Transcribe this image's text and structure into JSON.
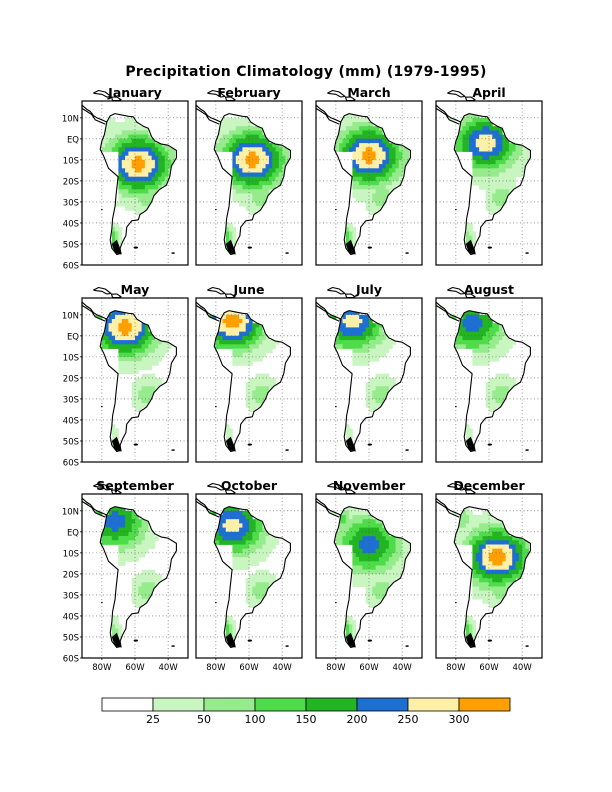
{
  "title": "Precipitation Climatology (mm) (1979-1995)",
  "colors": {
    "levels": [
      "#ffffff",
      "#c8f5c0",
      "#96eb8c",
      "#4fdc4a",
      "#22b422",
      "#1e6fd2",
      "#fff0a8",
      "#ff9f00"
    ],
    "land_outline": "#000000",
    "grid": "#555555"
  },
  "y_tick_labels": [
    "10N",
    "EQ",
    "10S",
    "20S",
    "30S",
    "40S",
    "50S",
    "60S"
  ],
  "x_tick_labels": [
    "80W",
    "60W",
    "40W"
  ],
  "months": [
    {
      "name": "January",
      "peak": 7,
      "cy": -12,
      "cx": -58,
      "north": 1,
      "south": 3
    },
    {
      "name": "February",
      "peak": 7,
      "cy": -10,
      "cx": -58,
      "north": 1,
      "south": 3
    },
    {
      "name": "March",
      "peak": 7,
      "cy": -8,
      "cx": -60,
      "north": 1,
      "south": 3
    },
    {
      "name": "April",
      "peak": 6,
      "cy": -2,
      "cx": -62,
      "north": 2,
      "south": 2
    },
    {
      "name": "May",
      "peak": 7,
      "cy": 4,
      "cx": -66,
      "north": 3,
      "south": 1
    },
    {
      "name": "June",
      "peak": 7,
      "cy": 7,
      "cx": -70,
      "north": 2,
      "south": 1
    },
    {
      "name": "July",
      "peak": 6,
      "cy": 7,
      "cx": -70,
      "north": 2,
      "south": 1
    },
    {
      "name": "August",
      "peak": 5,
      "cy": 6,
      "cx": -70,
      "north": 2,
      "south": 1
    },
    {
      "name": "September",
      "peak": 5,
      "cy": 5,
      "cx": -72,
      "north": 2,
      "south": 2
    },
    {
      "name": "October",
      "peak": 6,
      "cy": 3,
      "cx": -70,
      "north": 3,
      "south": 3
    },
    {
      "name": "November",
      "peak": 5,
      "cy": -6,
      "cx": -60,
      "north": 3,
      "south": 3
    },
    {
      "name": "December",
      "peak": 7,
      "cy": -12,
      "cx": -55,
      "north": 2,
      "south": 3
    }
  ],
  "legend": {
    "bins": 8,
    "labels": [
      "25",
      "50",
      "100",
      "150",
      "200",
      "250",
      "300"
    ]
  }
}
